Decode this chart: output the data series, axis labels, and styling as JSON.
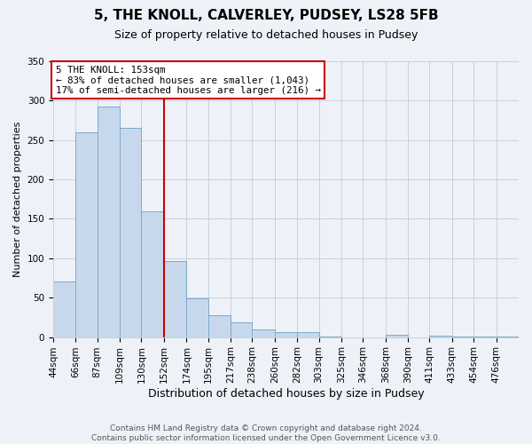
{
  "title": "5, THE KNOLL, CALVERLEY, PUDSEY, LS28 5FB",
  "subtitle": "Size of property relative to detached houses in Pudsey",
  "xlabel": "Distribution of detached houses by size in Pudsey",
  "ylabel": "Number of detached properties",
  "bar_color": "#c8d8ec",
  "bar_edge_color": "#7aaac8",
  "background_color": "#eef2f8",
  "grid_color": "#c8d0de",
  "annotation_text": "5 THE KNOLL: 153sqm\n← 83% of detached houses are smaller (1,043)\n17% of semi-detached houses are larger (216) →",
  "annotation_box_color": "#ffffff",
  "annotation_border_color": "#cc0000",
  "vline_color": "#cc0000",
  "categories": [
    "44sqm",
    "66sqm",
    "87sqm",
    "109sqm",
    "130sqm",
    "152sqm",
    "174sqm",
    "195sqm",
    "217sqm",
    "238sqm",
    "260sqm",
    "282sqm",
    "303sqm",
    "325sqm",
    "346sqm",
    "368sqm",
    "390sqm",
    "411sqm",
    "433sqm",
    "454sqm",
    "476sqm"
  ],
  "bin_edges": [
    44,
    66,
    87,
    109,
    130,
    152,
    174,
    195,
    217,
    238,
    260,
    282,
    303,
    325,
    346,
    368,
    390,
    411,
    433,
    454,
    476,
    498
  ],
  "vline_x": 152,
  "values": [
    70,
    260,
    292,
    265,
    160,
    97,
    49,
    28,
    19,
    10,
    6,
    6,
    1,
    0,
    0,
    3,
    0,
    2,
    1,
    1,
    1
  ],
  "ylim": [
    0,
    350
  ],
  "yticks": [
    0,
    50,
    100,
    150,
    200,
    250,
    300,
    350
  ],
  "footer_text": "Contains HM Land Registry data © Crown copyright and database right 2024.\nContains public sector information licensed under the Open Government Licence v3.0.",
  "title_fontsize": 11,
  "subtitle_fontsize": 9,
  "xlabel_fontsize": 9,
  "ylabel_fontsize": 8,
  "tick_fontsize": 7.5,
  "footer_fontsize": 6.5
}
